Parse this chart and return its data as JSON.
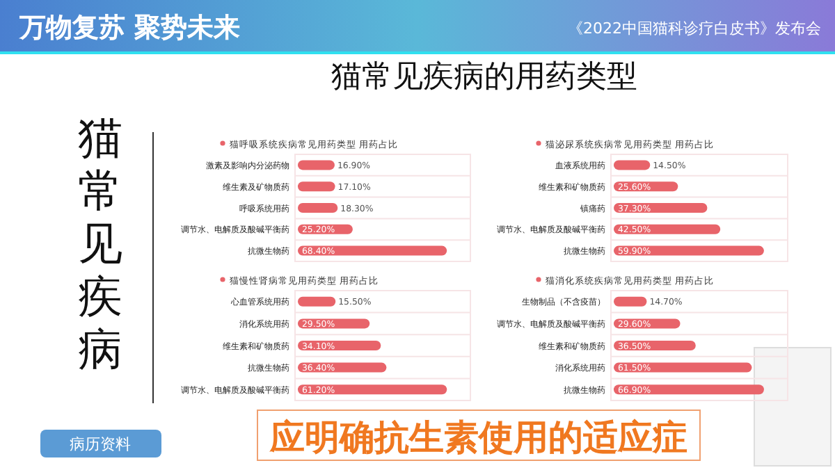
{
  "chart_data": [
    {
      "type": "other",
      "title": "猫常见疾病的用药类型",
      "annotations": [
        "万物复苏  聚势未来",
        "《2022中国猫科诊疗白皮书》发布会",
        "猫常见疾病",
        "病历资料",
        "应明确抗生素使用的适应症"
      ]
    },
    {
      "type": "bar",
      "orientation": "horizontal",
      "title": "猫呼吸系统疾病常见用药类型 用药占比",
      "categories": [
        "激素及影响内分泌药物",
        "维生素及矿物质药",
        "呼吸系统用药",
        "调节水、电解质及酸碱平衡药",
        "抗微生物药"
      ],
      "values": [
        16.9,
        17.1,
        18.3,
        25.2,
        68.4
      ],
      "value_labels": [
        "16.90%",
        "17.10%",
        "18.30%",
        "25.20%",
        "68.40%"
      ],
      "color": "#e8646a"
    },
    {
      "type": "bar",
      "orientation": "horizontal",
      "title": "猫泌尿系统疾病常见用药类型 用药占比",
      "categories": [
        "血液系统用药",
        "维生素和矿物质药",
        "镇痛药",
        "调节水、电解质及酸碱平衡药",
        "抗微生物药"
      ],
      "values": [
        14.5,
        25.6,
        37.3,
        42.5,
        59.9
      ],
      "value_labels": [
        "14.50%",
        "25.60%",
        "37.30%",
        "42.50%",
        "59.90%"
      ],
      "color": "#e8646a"
    },
    {
      "type": "bar",
      "orientation": "horizontal",
      "title": "猫慢性肾病常见用药类型 用药占比",
      "categories": [
        "心血管系统用药",
        "消化系统用药",
        "维生素和矿物质药",
        "抗微生物药",
        "调节水、电解质及酸碱平衡药"
      ],
      "values": [
        15.5,
        29.5,
        34.1,
        36.4,
        61.2
      ],
      "value_labels": [
        "15.50%",
        "29.50%",
        "34.10%",
        "36.40%",
        "61.20%"
      ],
      "color": "#e8646a"
    },
    {
      "type": "bar",
      "orientation": "horizontal",
      "title": "猫消化系统疾病常见用药类型 用药占比",
      "categories": [
        "生物制品（不含疫苗）",
        "调节水、电解质及酸碱平衡药",
        "维生素和矿物质药",
        "消化系统用药",
        "抗微生物药"
      ],
      "values": [
        14.7,
        29.6,
        36.5,
        61.5,
        66.9
      ],
      "value_labels": [
        "14.70%",
        "29.60%",
        "36.50%",
        "61.50%",
        "66.90%"
      ],
      "color": "#e8646a"
    }
  ]
}
